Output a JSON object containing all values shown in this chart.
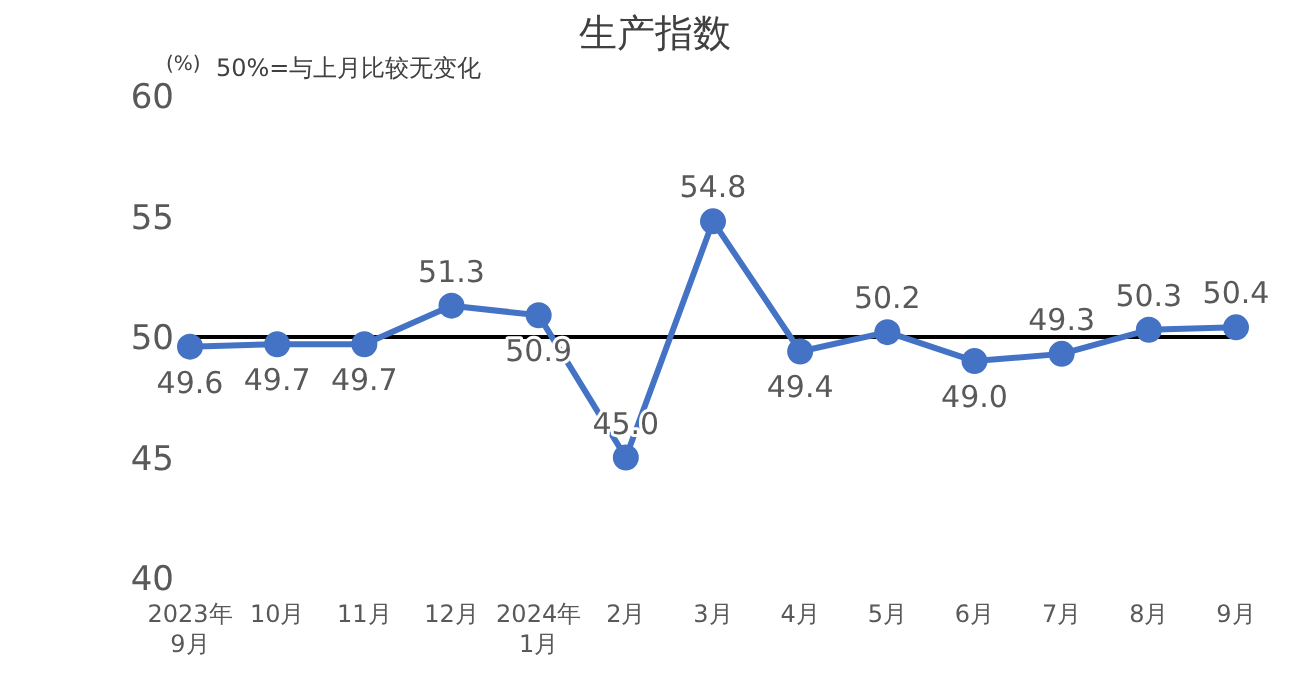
{
  "chart_data": {
    "type": "line",
    "title": "生产指数",
    "ylabel": "(%)",
    "annotations": [
      "50%=与上月比较无变化"
    ],
    "categories": [
      "2023年\n9月",
      "10月",
      "11月",
      "12月",
      "2024年\n1月",
      "2月",
      "3月",
      "4月",
      "5月",
      "6月",
      "7月",
      "8月",
      "9月"
    ],
    "series": [
      {
        "color": "#4472c4",
        "values": [
          49.6,
          49.7,
          49.7,
          51.3,
          50.9,
          45.0,
          54.8,
          49.4,
          50.2,
          49.0,
          49.3,
          50.3,
          50.4
        ],
        "value_labels": [
          "49.6",
          "49.7",
          "49.7",
          "51.3",
          "50.9",
          "45.0",
          "54.8",
          "49.4",
          "50.2",
          "49.0",
          "49.3",
          "50.3",
          "50.4"
        ]
      }
    ],
    "ylim": [
      40,
      60
    ],
    "yticks": [
      40,
      45,
      50,
      55,
      60
    ],
    "ref_lines": [
      {
        "axis": "y",
        "value": 50,
        "color": "#000000"
      }
    ],
    "grid": false,
    "legend": false,
    "marker": "circle",
    "line_style": "solid"
  }
}
